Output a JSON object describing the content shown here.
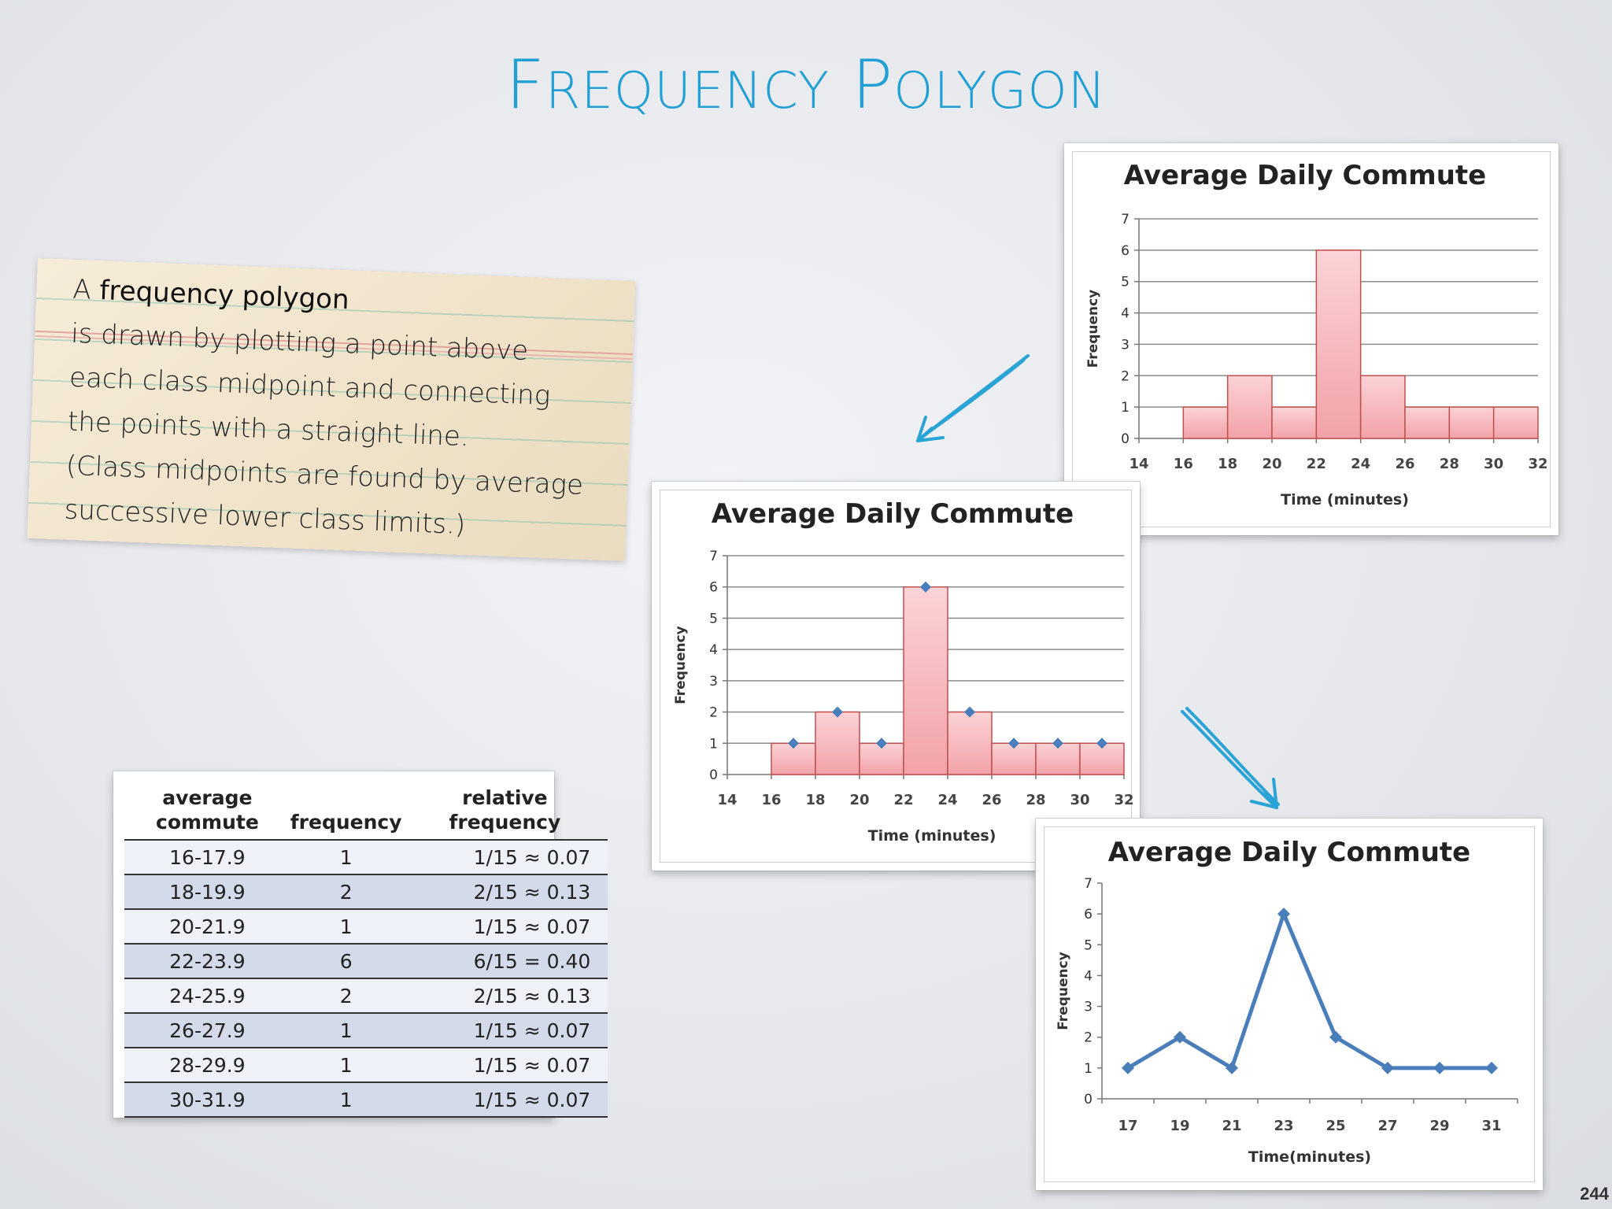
{
  "slide": {
    "title_first_letter": "F",
    "title_first_rest": "REQUENCY",
    "title_second_letter": "P",
    "title_second_rest": "OLYGON",
    "page_number": "244"
  },
  "note": {
    "line1_prefix": "A ",
    "line1_term": "frequency polygon",
    "line2": "is drawn by plotting a point above",
    "line3": "each class midpoint and connecting",
    "line4": "the points with a straight line.",
    "line5": "(Class midpoints are found by average",
    "line6": "successive lower class limits.)"
  },
  "table": {
    "headers": [
      "average commute",
      "frequency",
      "relative frequency"
    ],
    "rows": [
      [
        "16-17.9",
        "1",
        "1/15 ≈ 0.07"
      ],
      [
        "18-19.9",
        "2",
        "2/15 ≈ 0.13"
      ],
      [
        "20-21.9",
        "1",
        "1/15 ≈ 0.07"
      ],
      [
        "22-23.9",
        "6",
        "6/15 = 0.40"
      ],
      [
        "24-25.9",
        "2",
        "2/15 ≈ 0.13"
      ],
      [
        "26-27.9",
        "1",
        "1/15 ≈ 0.07"
      ],
      [
        "28-29.9",
        "1",
        "1/15 ≈ 0.07"
      ],
      [
        "30-31.9",
        "1",
        "1/15 ≈ 0.07"
      ]
    ]
  },
  "colors": {
    "title": "#1f9fd3",
    "bar_fill_top": "#fbd3d6",
    "bar_fill_bottom": "#f2a2a8",
    "bar_stroke": "#c0504d",
    "marker": "#4a7ebb",
    "arrow": "#2aa3d6",
    "table_alt_row": "#d3daea"
  },
  "chart_data": [
    {
      "type": "bar",
      "title": "Average Daily Commute",
      "xlabel": "Time (minutes)",
      "ylabel": "Frequency",
      "x_ticks": [
        "14",
        "16",
        "18",
        "20",
        "22",
        "24",
        "26",
        "28",
        "30",
        "32"
      ],
      "bins": [
        [
          16,
          18
        ],
        [
          18,
          20
        ],
        [
          20,
          22
        ],
        [
          22,
          24
        ],
        [
          24,
          26
        ],
        [
          26,
          28
        ],
        [
          28,
          30
        ],
        [
          30,
          32
        ]
      ],
      "values": [
        1,
        2,
        1,
        6,
        2,
        1,
        1,
        1
      ],
      "ylim": [
        0,
        7
      ],
      "y_ticks": [
        0,
        1,
        2,
        3,
        4,
        5,
        6,
        7
      ],
      "grid": true
    },
    {
      "type": "bar",
      "title": "Average Daily Commute",
      "xlabel": "Time (minutes)",
      "ylabel": "Frequency",
      "x_ticks": [
        "14",
        "16",
        "18",
        "20",
        "22",
        "24",
        "26",
        "28",
        "30",
        "32"
      ],
      "bins": [
        [
          16,
          18
        ],
        [
          18,
          20
        ],
        [
          20,
          22
        ],
        [
          22,
          24
        ],
        [
          24,
          26
        ],
        [
          26,
          28
        ],
        [
          28,
          30
        ],
        [
          30,
          32
        ]
      ],
      "values": [
        1,
        2,
        1,
        6,
        2,
        1,
        1,
        1
      ],
      "midpoint_markers": {
        "x": [
          17,
          19,
          21,
          23,
          25,
          27,
          29,
          31
        ],
        "y": [
          1,
          2,
          1,
          6,
          2,
          1,
          1,
          1
        ]
      },
      "ylim": [
        0,
        7
      ],
      "y_ticks": [
        0,
        1,
        2,
        3,
        4,
        5,
        6,
        7
      ],
      "grid": true
    },
    {
      "type": "line",
      "title": "Average Daily Commute",
      "xlabel": "Time(minutes)",
      "ylabel": "Frequency",
      "categories": [
        "17",
        "19",
        "21",
        "23",
        "25",
        "27",
        "29",
        "31"
      ],
      "values": [
        1,
        2,
        1,
        6,
        2,
        1,
        1,
        1
      ],
      "ylim": [
        0,
        7
      ],
      "y_ticks": [
        0,
        1,
        2,
        3,
        4,
        5,
        6,
        7
      ],
      "grid": false
    }
  ]
}
